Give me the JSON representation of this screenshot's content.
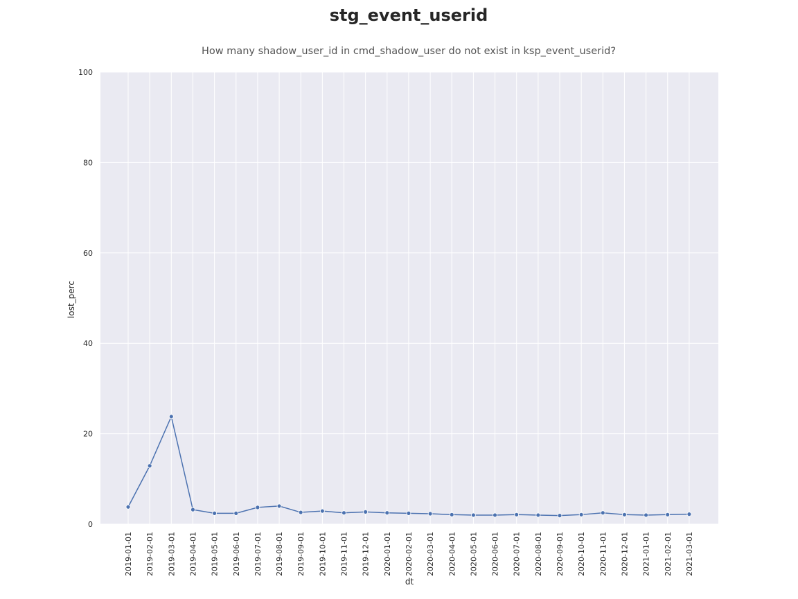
{
  "chart_data": {
    "type": "line",
    "title": "stg_event_userid",
    "subtitle": "How many shadow_user_id in cmd_shadow_user do not exist in ksp_event_userid?",
    "xlabel": "dt",
    "ylabel": "lost_perc",
    "ylim": [
      0,
      100
    ],
    "yticks": [
      0,
      20,
      40,
      60,
      80,
      100
    ],
    "grid": true,
    "x": [
      "2019-01-01",
      "2019-02-01",
      "2019-03-01",
      "2019-04-01",
      "2019-05-01",
      "2019-06-01",
      "2019-07-01",
      "2019-08-01",
      "2019-09-01",
      "2019-10-01",
      "2019-11-01",
      "2019-12-01",
      "2020-01-01",
      "2020-02-01",
      "2020-03-01",
      "2020-04-01",
      "2020-05-01",
      "2020-06-01",
      "2020-07-01",
      "2020-08-01",
      "2020-09-01",
      "2020-10-01",
      "2020-11-01",
      "2020-12-01",
      "2021-01-01",
      "2021-02-01",
      "2021-03-01"
    ],
    "series": [
      {
        "values": [
          3.8,
          12.9,
          23.8,
          3.2,
          2.4,
          2.4,
          3.7,
          4.0,
          2.6,
          2.9,
          2.5,
          2.7,
          2.5,
          2.4,
          2.3,
          2.1,
          2.0,
          2.0,
          2.1,
          2.0,
          1.9,
          2.1,
          2.5,
          2.1,
          2.0,
          2.1,
          2.2
        ],
        "color": "#4c72b0"
      }
    ]
  }
}
